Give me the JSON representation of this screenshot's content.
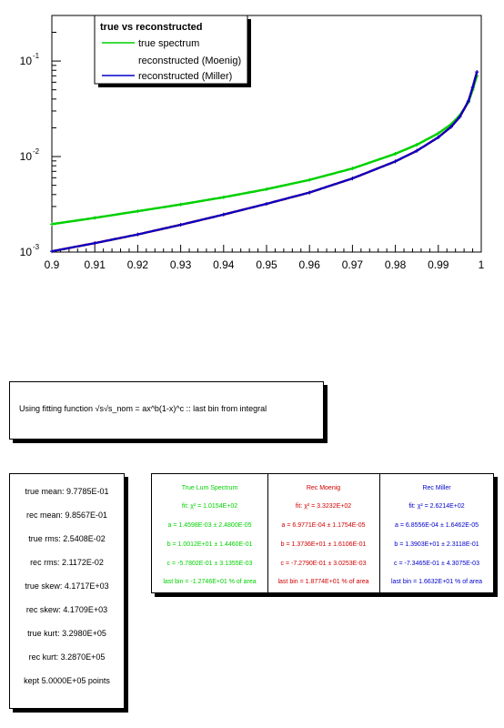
{
  "colors": {
    "green": "#00d000",
    "red": "#d00000",
    "blue": "#0000c8",
    "black": "#000000"
  },
  "chart_data": {
    "type": "scatter",
    "title": "",
    "xlabel": "",
    "ylabel": "",
    "xlim": [
      0.9,
      1.0
    ],
    "ylim": [
      0.001,
      0.3
    ],
    "yscale": "log",
    "grid": false,
    "legend_position": "top-left",
    "x_ticks": [
      "0.9",
      "0.91",
      "0.92",
      "0.93",
      "0.94",
      "0.95",
      "0.96",
      "0.97",
      "0.98",
      "0.99",
      "1"
    ],
    "y_ticks": [
      "10^{-3}",
      "10^{-2}",
      "10^{-1}"
    ],
    "legend": {
      "title": "true vs reconstructed",
      "entries": [
        "true spectrum",
        "reconstructed (Moenig)",
        "reconstructed (Miller)"
      ]
    },
    "series": [
      {
        "name": "true spectrum",
        "color": "#00d000",
        "x": [
          0.9,
          0.91,
          0.92,
          0.93,
          0.94,
          0.95,
          0.96,
          0.97,
          0.98,
          0.985,
          0.99,
          0.993,
          0.995,
          0.997,
          0.998,
          0.999
        ],
        "y": [
          0.00196,
          0.00228,
          0.00268,
          0.00315,
          0.00375,
          0.00455,
          0.0057,
          0.0075,
          0.0107,
          0.0133,
          0.0175,
          0.0218,
          0.027,
          0.037,
          0.05,
          0.07
        ]
      },
      {
        "name": "reconstructed (Moenig)",
        "color": "#d00000",
        "x": [
          0.9,
          0.91,
          0.92,
          0.93,
          0.94,
          0.95,
          0.96,
          0.97,
          0.98,
          0.985,
          0.99,
          0.993,
          0.995,
          0.997,
          0.998,
          0.999
        ],
        "y": [
          0.00102,
          0.00124,
          0.00153,
          0.00193,
          0.00247,
          0.0032,
          0.0042,
          0.0059,
          0.0089,
          0.0115,
          0.0159,
          0.0205,
          0.026,
          0.038,
          0.053,
          0.077
        ]
      },
      {
        "name": "reconstructed (Miller)",
        "color": "#0000c8",
        "x": [
          0.9,
          0.91,
          0.92,
          0.93,
          0.94,
          0.95,
          0.96,
          0.97,
          0.98,
          0.985,
          0.99,
          0.993,
          0.995,
          0.997,
          0.998,
          0.999
        ],
        "y": [
          0.00102,
          0.00124,
          0.00153,
          0.00193,
          0.00247,
          0.0032,
          0.0042,
          0.0059,
          0.0089,
          0.0115,
          0.0159,
          0.0205,
          0.026,
          0.038,
          0.053,
          0.077
        ]
      }
    ]
  },
  "fit_box": {
    "text": "Using fitting function √s√s_nom = ax^b(1-x)^c  :: last bin from integral"
  },
  "stats": [
    "true mean: 9.7785E-01",
    "rec mean: 9.8567E-01",
    "true rms: 2.5408E-02",
    "rec rms: 2.1172E-02",
    "true skew: 4.1717E+03",
    "rec skew: 4.1709E+03",
    "true kurt: 3.2980E+05",
    "rec kurt: 3.2870E+05",
    "kept 5.0000E+05 points"
  ],
  "fit_table": [
    {
      "header": "True Lum Spectrum",
      "chi2": "fit: χ² = 1.0154E+02",
      "a": "a = 1.4598E-03 ± 2.4800E-05",
      "b": "b = 1.0012E+01 ± 1.4460E-01",
      "c": "c = -5.7802E-01 ± 3.1355E-03",
      "last": "last bin = -1.2746E+01 % of area"
    },
    {
      "header": "Rec Moenig",
      "chi2": "fit: χ² = 3.3232E+02",
      "a": "a = 6.9771E-04 ± 1.1754E-05",
      "b": "b = 1.3736E+01 ± 1.6106E-01",
      "c": "c = -7.2790E-01 ± 3.0253E-03",
      "last": "last bin = 1.8774E+01 % of area"
    },
    {
      "header": "Rec Miller",
      "chi2": "fit: χ² = 2.6214E+02",
      "a": "a = 6.8556E-04 ± 1.6462E-05",
      "b": "b = 1.3903E+01 ± 2.3118E-01",
      "c": "c = -7.3465E-01 ± 4.3075E-03",
      "last": "last bin = 1.6632E+01 % of area"
    }
  ]
}
